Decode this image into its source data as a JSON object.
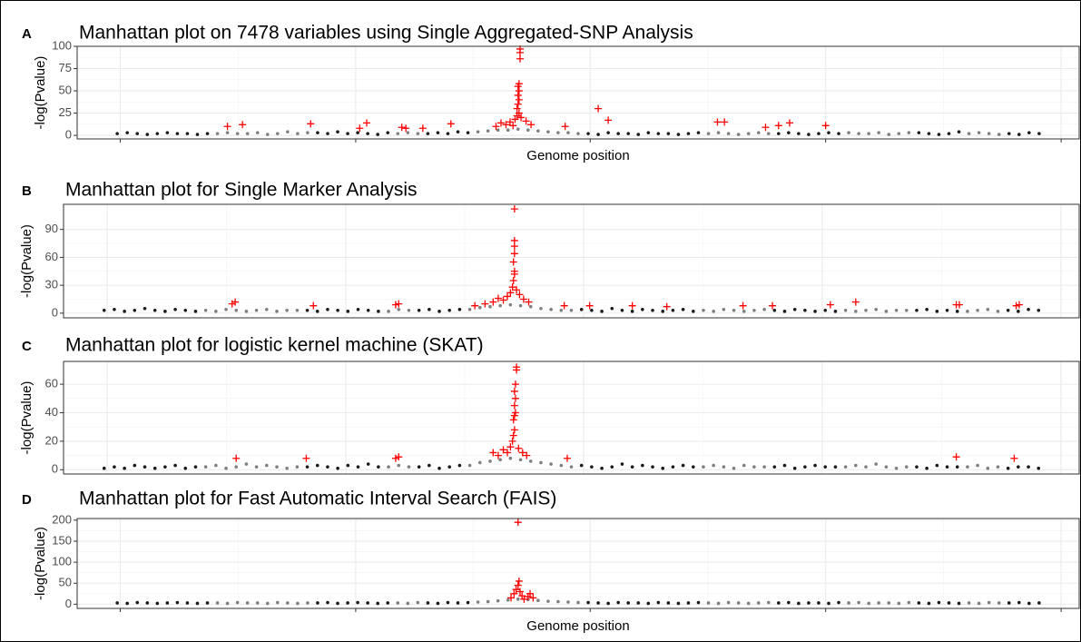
{
  "chart_data": [
    {
      "type": "scatter",
      "panel": "A",
      "title": "Manhattan plot on 7478 variables using Single Aggregated-SNP Analysis",
      "ylabel": "-log(Pvalue)",
      "xlabel": "Genome position",
      "xlim": [
        0,
        100
      ],
      "xticks": [
        4.3,
        27.8,
        51.2,
        74.7,
        98.2
      ],
      "ylim": [
        -4,
        100
      ],
      "yticks": [
        0,
        25,
        50,
        75,
        100
      ],
      "grid": true,
      "series": [
        {
          "color": "#1a1a1a",
          "marker": "dot",
          "x": [
            4,
            5,
            6,
            7,
            8,
            9,
            10,
            11,
            12,
            13,
            24,
            25,
            26,
            27,
            28,
            29,
            30,
            31,
            35,
            36,
            37,
            38,
            39,
            51,
            52,
            53,
            54,
            55,
            56,
            57,
            58,
            59,
            60,
            61,
            62,
            70,
            71,
            72,
            73,
            74,
            75,
            76,
            84,
            85,
            86,
            87,
            88,
            93,
            94,
            95,
            96
          ],
          "values": [
            2,
            3,
            2,
            1,
            2,
            3,
            2,
            2,
            1,
            2,
            3,
            2,
            4,
            2,
            3,
            2,
            1,
            3,
            2,
            3,
            2,
            4,
            3,
            2,
            1,
            3,
            2,
            2,
            1,
            3,
            2,
            2,
            1,
            2,
            3,
            2,
            3,
            2,
            1,
            2,
            3,
            2,
            3,
            2,
            1,
            2,
            4,
            2,
            1,
            3,
            2
          ]
        },
        {
          "color": "#7f7f7f",
          "marker": "dot",
          "x": [
            14,
            15,
            16,
            17,
            18,
            19,
            20,
            21,
            22,
            23,
            32,
            33,
            34,
            40,
            41,
            42,
            43,
            44,
            45,
            46,
            47,
            48,
            49,
            50,
            63,
            64,
            65,
            66,
            67,
            68,
            69,
            77,
            78,
            79,
            80,
            81,
            82,
            83,
            89,
            90,
            91,
            92
          ],
          "values": [
            2,
            3,
            2,
            2,
            3,
            1,
            2,
            4,
            2,
            3,
            2,
            3,
            2,
            4,
            5,
            6,
            6,
            7,
            6,
            5,
            4,
            3,
            3,
            2,
            2,
            3,
            2,
            1,
            2,
            3,
            2,
            3,
            2,
            2,
            3,
            1,
            2,
            3,
            2,
            3,
            2,
            1
          ]
        },
        {
          "color": "#ff0000",
          "marker": "plus",
          "x": [
            15,
            16.5,
            23.3,
            28.2,
            28.9,
            32.4,
            32.8,
            34.5,
            37.3,
            41.8,
            42.3,
            42.8,
            43.2,
            43.5,
            43.7,
            43.9,
            44.1,
            44.3,
            43.9,
            44,
            44.1,
            44,
            44.1,
            44,
            44.1,
            44.2,
            44.2,
            44.2,
            44.8,
            45.3,
            48.7,
            52,
            53,
            63.9,
            64.6,
            68.7,
            70,
            71.1,
            74.7
          ],
          "values": [
            10,
            12,
            13,
            8,
            14,
            9,
            8,
            8,
            13,
            10,
            14,
            12,
            15,
            11,
            18,
            22,
            25,
            20,
            30,
            35,
            40,
            45,
            50,
            55,
            58,
            86,
            93,
            97,
            16,
            12,
            10,
            30,
            17,
            15,
            15,
            9,
            11,
            14,
            11
          ]
        }
      ]
    },
    {
      "type": "scatter",
      "panel": "B",
      "title": "Manhattan plot for Single Marker Analysis",
      "ylabel": "-log(Pvalue)",
      "xlim": [
        0,
        100
      ],
      "xticks": [
        4.3,
        27.8,
        51.2,
        74.7,
        98.2
      ],
      "ylim": [
        -5,
        117
      ],
      "yticks": [
        0,
        30,
        60,
        90
      ],
      "grid": true,
      "series": [
        {
          "color": "#1a1a1a",
          "marker": "dot",
          "x": [
            4,
            5,
            6,
            7,
            8,
            9,
            10,
            11,
            12,
            13,
            24,
            25,
            26,
            27,
            28,
            29,
            30,
            31,
            35,
            36,
            37,
            38,
            39,
            51,
            52,
            53,
            54,
            55,
            56,
            57,
            58,
            59,
            60,
            61,
            62,
            70,
            71,
            72,
            73,
            74,
            75,
            76,
            84,
            85,
            86,
            87,
            88,
            93,
            94,
            95,
            96
          ],
          "values": [
            3,
            4,
            2,
            3,
            5,
            3,
            2,
            4,
            3,
            2,
            3,
            2,
            4,
            3,
            2,
            4,
            3,
            2,
            3,
            4,
            2,
            3,
            4,
            4,
            3,
            2,
            5,
            3,
            2,
            4,
            3,
            2,
            3,
            4,
            2,
            3,
            2,
            4,
            3,
            2,
            3,
            2,
            3,
            4,
            2,
            3,
            2,
            3,
            2,
            4,
            3
          ]
        },
        {
          "color": "#7f7f7f",
          "marker": "dot",
          "x": [
            14,
            15,
            16,
            17,
            18,
            19,
            20,
            21,
            22,
            23,
            32,
            33,
            34,
            40,
            41,
            42,
            43,
            44,
            45,
            46,
            47,
            48,
            49,
            50,
            63,
            64,
            65,
            66,
            67,
            68,
            69,
            77,
            78,
            79,
            80,
            81,
            82,
            83,
            89,
            90,
            91,
            92
          ],
          "values": [
            3,
            2,
            4,
            3,
            2,
            3,
            4,
            2,
            3,
            3,
            2,
            4,
            3,
            4,
            6,
            7,
            8,
            9,
            8,
            7,
            5,
            4,
            3,
            3,
            3,
            2,
            4,
            3,
            2,
            3,
            4,
            3,
            2,
            3,
            4,
            2,
            3,
            3,
            2,
            3,
            4,
            2
          ]
        },
        {
          "color": "#ff0000",
          "marker": "plus",
          "x": [
            16.6,
            16.9,
            24.6,
            32.7,
            33,
            40.5,
            41.5,
            42.3,
            42.8,
            43.3,
            43.7,
            44,
            44.2,
            44.3,
            44.4,
            44.4,
            44.3,
            44.4,
            44.4,
            44.4,
            44.4,
            44.6,
            44.9,
            45.3,
            45.8,
            49.3,
            51.8,
            56,
            59.4,
            66.9,
            69.8,
            75.5,
            78,
            87.9,
            88.2,
            93.8,
            94.1
          ],
          "values": [
            10,
            12,
            8,
            9,
            10,
            8,
            10,
            12,
            16,
            14,
            18,
            22,
            28,
            35,
            42,
            45,
            55,
            64,
            72,
            78,
            112,
            25,
            20,
            15,
            12,
            8,
            8,
            8,
            7,
            8,
            8,
            9,
            12,
            9,
            9,
            8,
            9
          ]
        }
      ]
    },
    {
      "type": "scatter",
      "panel": "C",
      "title": "Manhattan plot for logistic kernel machine (SKAT)",
      "ylabel": "-log(Pvalue)",
      "xlim": [
        0,
        100
      ],
      "xticks": [
        4.3,
        27.8,
        51.2,
        74.7,
        98.2
      ],
      "ylim": [
        -3,
        76
      ],
      "yticks": [
        0,
        20,
        40,
        60
      ],
      "grid": true,
      "series": [
        {
          "color": "#1a1a1a",
          "marker": "dot",
          "x": [
            4,
            5,
            6,
            7,
            8,
            9,
            10,
            11,
            12,
            13,
            24,
            25,
            26,
            27,
            28,
            29,
            30,
            31,
            35,
            36,
            37,
            38,
            39,
            51,
            52,
            53,
            54,
            55,
            56,
            57,
            58,
            59,
            60,
            61,
            62,
            70,
            71,
            72,
            73,
            74,
            75,
            76,
            84,
            85,
            86,
            87,
            88,
            93,
            94,
            95,
            96
          ],
          "values": [
            1,
            2,
            1,
            3,
            2,
            1,
            2,
            3,
            1,
            2,
            2,
            3,
            2,
            1,
            3,
            2,
            4,
            2,
            2,
            3,
            1,
            2,
            3,
            3,
            2,
            1,
            2,
            4,
            2,
            3,
            2,
            1,
            2,
            3,
            2,
            2,
            3,
            1,
            2,
            3,
            2,
            2,
            2,
            1,
            3,
            2,
            2,
            1,
            2,
            2,
            1
          ]
        },
        {
          "color": "#7f7f7f",
          "marker": "dot",
          "x": [
            14,
            15,
            16,
            17,
            18,
            19,
            20,
            21,
            22,
            23,
            32,
            33,
            34,
            40,
            41,
            42,
            43,
            44,
            45,
            46,
            47,
            48,
            49,
            50,
            63,
            64,
            65,
            66,
            67,
            68,
            69,
            77,
            78,
            79,
            80,
            81,
            82,
            83,
            89,
            90,
            91,
            92
          ],
          "values": [
            2,
            3,
            1,
            2,
            4,
            2,
            3,
            2,
            1,
            2,
            2,
            3,
            2,
            3,
            5,
            6,
            7,
            8,
            7,
            6,
            5,
            4,
            3,
            2,
            2,
            3,
            2,
            1,
            3,
            2,
            2,
            2,
            3,
            2,
            4,
            2,
            1,
            2,
            2,
            3,
            1,
            2
          ]
        },
        {
          "color": "#ff0000",
          "marker": "plus",
          "x": [
            17,
            23.9,
            32.7,
            33,
            42.3,
            42.8,
            43.3,
            43.7,
            44,
            44.2,
            44.3,
            44.4,
            44.3,
            44.4,
            44.5,
            44.4,
            44.5,
            44.4,
            44.5,
            44.6,
            44.6,
            44.8,
            45.2,
            45.6,
            49.6,
            87.9,
            93.6
          ],
          "values": [
            8,
            8,
            8,
            9,
            12,
            10,
            14,
            12,
            16,
            20,
            24,
            28,
            35,
            38,
            40,
            45,
            50,
            55,
            60,
            70,
            72,
            15,
            12,
            10,
            8,
            9,
            8
          ]
        }
      ]
    },
    {
      "type": "scatter",
      "panel": "D",
      "title": "Manhattan plot for Fast Automatic Interval Search (FAIS)",
      "ylabel": "-log(Pvalue)",
      "xlabel": "Genome position",
      "xlim": [
        0,
        100
      ],
      "xticks": [
        4.3,
        27.8,
        51.2,
        74.7,
        98.2
      ],
      "ylim": [
        -10,
        204
      ],
      "yticks": [
        0,
        50,
        100,
        150,
        200
      ],
      "grid": true,
      "series": [
        {
          "color": "#1a1a1a",
          "marker": "dot",
          "x": [
            4,
            5,
            6,
            7,
            8,
            9,
            10,
            11,
            12,
            13,
            24,
            25,
            26,
            27,
            28,
            29,
            30,
            31,
            35,
            36,
            37,
            38,
            39,
            51,
            52,
            53,
            54,
            55,
            56,
            57,
            58,
            59,
            60,
            61,
            62,
            70,
            71,
            72,
            73,
            74,
            75,
            76,
            84,
            85,
            86,
            87,
            88,
            93,
            94,
            95,
            96
          ],
          "values": [
            3,
            2,
            4,
            3,
            2,
            3,
            4,
            3,
            2,
            3,
            3,
            4,
            2,
            3,
            4,
            3,
            2,
            3,
            3,
            2,
            4,
            3,
            4,
            4,
            3,
            2,
            4,
            3,
            3,
            2,
            4,
            3,
            2,
            3,
            4,
            3,
            4,
            2,
            3,
            3,
            2,
            4,
            3,
            2,
            4,
            3,
            2,
            3,
            4,
            2,
            3
          ]
        },
        {
          "color": "#7f7f7f",
          "marker": "dot",
          "x": [
            14,
            15,
            16,
            17,
            18,
            19,
            20,
            21,
            22,
            23,
            32,
            33,
            34,
            40,
            41,
            42,
            43,
            44,
            45,
            46,
            47,
            48,
            49,
            50,
            63,
            64,
            65,
            66,
            67,
            68,
            69,
            77,
            78,
            79,
            80,
            81,
            82,
            83,
            89,
            90,
            91,
            92
          ],
          "values": [
            3,
            2,
            4,
            3,
            3,
            2,
            4,
            3,
            2,
            3,
            3,
            2,
            4,
            5,
            6,
            8,
            10,
            12,
            11,
            9,
            7,
            6,
            5,
            4,
            3,
            2,
            4,
            3,
            2,
            3,
            4,
            3,
            4,
            2,
            3,
            3,
            2,
            4,
            3,
            2,
            4,
            3
          ]
        },
        {
          "color": "#ff0000",
          "marker": "plus",
          "x": [
            43.3,
            43.6,
            43.8,
            44,
            44.1,
            44,
            44.2,
            44.4,
            44.6,
            45,
            45.5,
            45.2
          ],
          "values": [
            15,
            25,
            35,
            45,
            55,
            195,
            30,
            20,
            12,
            18,
            15,
            25
          ]
        }
      ]
    }
  ]
}
